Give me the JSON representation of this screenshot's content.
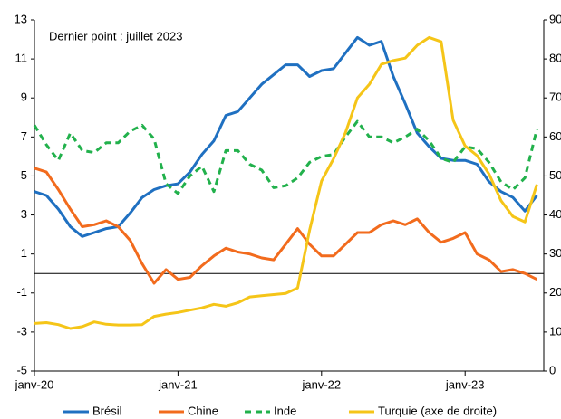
{
  "chart_data": {
    "type": "line",
    "annotation": "Dernier point : juillet 2023",
    "categories": [
      "janv-20",
      null,
      null,
      null,
      null,
      null,
      null,
      null,
      null,
      null,
      null,
      null,
      "janv-21",
      null,
      null,
      null,
      null,
      null,
      null,
      null,
      null,
      null,
      null,
      null,
      "janv-22",
      null,
      null,
      null,
      null,
      null,
      null,
      null,
      null,
      null,
      null,
      null,
      "janv-23",
      null,
      null,
      null,
      null,
      null,
      null
    ],
    "ylim": [
      -5,
      13
    ],
    "yticks": [
      -5,
      -3,
      -1,
      1,
      3,
      5,
      7,
      9,
      11,
      13
    ],
    "y2lim": [
      0,
      90
    ],
    "y2ticks": [
      0,
      10,
      20,
      30,
      40,
      50,
      60,
      70,
      80,
      90
    ],
    "zero_line": true,
    "series": [
      {
        "name": "Brésil",
        "color": "#1f70c1",
        "style": "solid",
        "values": [
          4.2,
          4.0,
          3.3,
          2.4,
          1.9,
          2.1,
          2.3,
          2.4,
          3.1,
          3.9,
          4.3,
          4.5,
          4.6,
          5.2,
          6.1,
          6.8,
          8.1,
          8.3,
          9.0,
          9.7,
          10.2,
          10.7,
          10.7,
          10.1,
          10.4,
          10.5,
          11.3,
          12.1,
          11.7,
          11.9,
          10.1,
          8.7,
          7.2,
          6.5,
          5.9,
          5.8,
          5.8,
          5.6,
          4.7,
          4.2,
          3.9,
          3.2,
          4.0
        ]
      },
      {
        "name": "Chine",
        "color": "#f26b1d",
        "style": "solid",
        "values": [
          5.4,
          5.2,
          4.3,
          3.3,
          2.4,
          2.5,
          2.7,
          2.4,
          1.7,
          0.5,
          -0.5,
          0.2,
          -0.3,
          -0.2,
          0.4,
          0.9,
          1.3,
          1.1,
          1.0,
          0.8,
          0.7,
          1.5,
          2.3,
          1.5,
          0.9,
          0.9,
          1.5,
          2.1,
          2.1,
          2.5,
          2.7,
          2.5,
          2.8,
          2.1,
          1.6,
          1.8,
          2.1,
          1.0,
          0.7,
          0.1,
          0.2,
          0.0,
          -0.3
        ]
      },
      {
        "name": "Inde",
        "color": "#22b14c",
        "style": "dashed",
        "values": [
          7.6,
          6.6,
          5.8,
          7.2,
          6.3,
          6.2,
          6.7,
          6.7,
          7.3,
          7.6,
          6.9,
          4.6,
          4.1,
          5.0,
          5.5,
          4.2,
          6.3,
          6.3,
          5.6,
          5.3,
          4.4,
          4.5,
          4.9,
          5.7,
          6.0,
          6.1,
          7.0,
          7.8,
          7.0,
          7.0,
          6.7,
          7.0,
          7.4,
          6.8,
          5.9,
          5.7,
          6.5,
          6.4,
          5.7,
          4.7,
          4.3,
          4.9,
          7.4
        ]
      },
      {
        "name": "Turquie (axe de droite)",
        "color": "#f5c518",
        "style": "solid",
        "axis": "y2",
        "values": [
          12.2,
          12.4,
          11.9,
          10.9,
          11.4,
          12.6,
          12.0,
          11.8,
          11.8,
          11.9,
          14.0,
          14.6,
          15.0,
          15.6,
          16.2,
          17.1,
          16.6,
          17.5,
          19.0,
          19.3,
          19.6,
          19.9,
          21.3,
          36.1,
          48.7,
          54.4,
          61.1,
          70.0,
          73.5,
          78.6,
          79.6,
          80.2,
          83.5,
          85.5,
          84.4,
          64.3,
          57.7,
          55.2,
          50.5,
          43.7,
          39.6,
          38.2,
          47.8
        ]
      }
    ]
  }
}
